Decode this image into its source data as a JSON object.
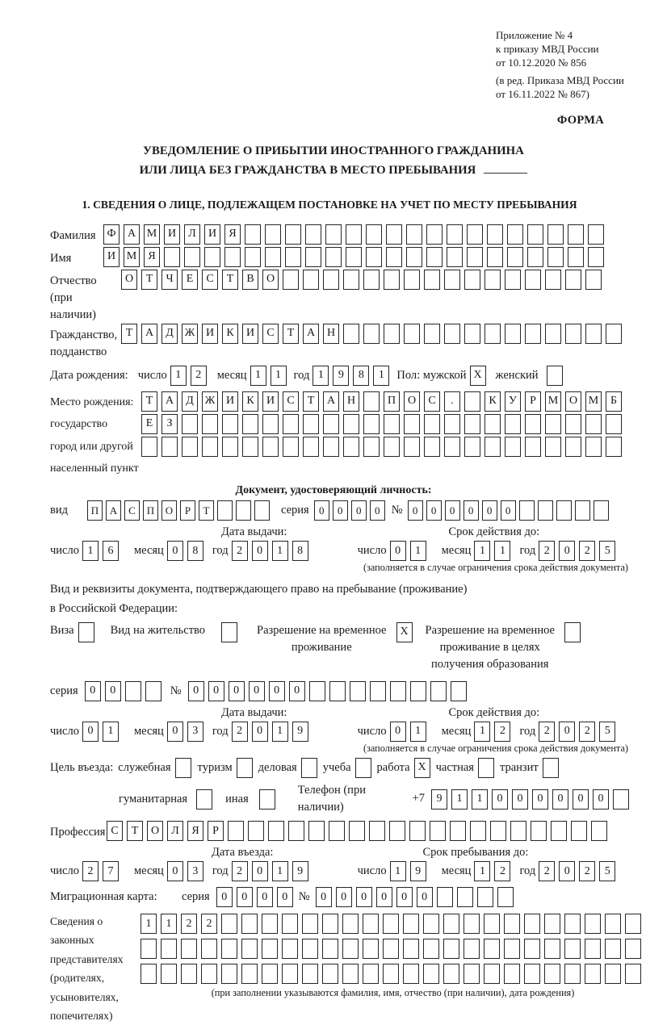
{
  "header": {
    "ref_lines": [
      "Приложение № 4",
      "к приказу МВД России",
      "от 10.12.2020 № 856",
      "(в ред. Приказа МВД России",
      "от 16.11.2022 № 867)"
    ],
    "form_label": "ФОРМА"
  },
  "title": {
    "line1": "УВЕДОМЛЕНИЕ О ПРИБЫТИИ ИНОСТРАННОГО ГРАЖДАНИНА",
    "line2": "ИЛИ ЛИЦА БЕЗ ГРАЖДАНСТВА В МЕСТО ПРЕБЫВАНИЯ"
  },
  "section1": {
    "heading": "1. СВЕДЕНИЯ О ЛИЦЕ, ПОДЛЕЖАЩЕМ ПОСТАНОВКЕ НА УЧЕТ ПО МЕСТУ ПРЕБЫВАНИЯ",
    "surname": {
      "label": "Фамилия",
      "boxes": {
        "chars": "ФАМИЛИЯ",
        "total": 25
      }
    },
    "given_name": {
      "label": "Имя",
      "boxes": {
        "chars": "ИМЯ",
        "total": 25
      }
    },
    "patronymic": {
      "label1": "Отчество",
      "label2": "(при наличии)",
      "boxes": {
        "chars": "ОТЧЕСТВО",
        "total": 24
      }
    },
    "citizenship": {
      "label1": "Гражданство,",
      "label2": "подданство",
      "boxes": {
        "chars": "ТАДЖИКИСТАН",
        "total": 25
      }
    },
    "birth_date": {
      "label": "Дата рождения:",
      "day_label": "число",
      "day": {
        "chars": "12",
        "total": 2
      },
      "month_label": "месяц",
      "month": {
        "chars": "11",
        "total": 2
      },
      "year_label": "год",
      "year": {
        "chars": "1981",
        "total": 4
      }
    },
    "sex": {
      "label": "Пол: мужской",
      "male_box": {
        "chars": "X",
        "total": 1
      },
      "female_label": "женский",
      "female_box": {
        "chars": "",
        "total": 1
      }
    },
    "birth_place": {
      "label_lines": [
        "Место рождения:",
        "государство",
        "город или другой",
        "населенный пункт"
      ],
      "row1": {
        "chars": "ТАДЖИКИСТАН ПОС. КУРМОМБ",
        "total": 24
      },
      "row2": {
        "chars": "ЕЗ",
        "total": 24
      },
      "row3": {
        "chars": "",
        "total": 24
      }
    },
    "identity_doc": {
      "heading": "Документ, удостоверяющий личность:",
      "kind_label": "вид",
      "kind": {
        "chars": "ПАСПОРТ",
        "total": 10
      },
      "series_label": "серия",
      "series": {
        "chars": "0000",
        "total": 4
      },
      "number_label": "№",
      "number": {
        "chars": "000000",
        "total": 11
      },
      "issue_heading": "Дата выдачи:",
      "issue_day_label": "число",
      "issue_day": {
        "chars": "16",
        "total": 2
      },
      "issue_month_label": "месяц",
      "issue_month": {
        "chars": "08",
        "total": 2
      },
      "issue_year_label": "год",
      "issue_year": {
        "chars": "2018",
        "total": 4
      },
      "valid_heading": "Срок действия до:",
      "valid_day_label": "число",
      "valid_day": {
        "chars": "01",
        "total": 2
      },
      "valid_month_label": "месяц",
      "valid_month": {
        "chars": "11",
        "total": 2
      },
      "valid_year_label": "год",
      "valid_year": {
        "chars": "2025",
        "total": 4
      },
      "note": "(заполняется в случае ограничения срока действия документа)"
    },
    "residence_doc": {
      "intro1": "Вид и реквизиты документа, подтверждающего право на пребывание (проживание)",
      "intro2": "в Российской Федерации:",
      "visa_label": "Виза",
      "visa_box": {
        "chars": "",
        "total": 1
      },
      "residence_permit_label": "Вид на жительство",
      "residence_permit_box": {
        "chars": "",
        "total": 1
      },
      "temp_permit_label1": "Разрешение на временное",
      "temp_permit_label2": "проживание",
      "temp_permit_box": {
        "chars": "X",
        "total": 1
      },
      "edu_permit_label1": "Разрешение на временное",
      "edu_permit_label2": "проживание в целях",
      "edu_permit_label3": "получения образования",
      "edu_permit_box": {
        "chars": "",
        "total": 1
      },
      "series_label": "серия",
      "series": {
        "chars": "00",
        "total": 4
      },
      "number_label": "№",
      "number": {
        "chars": "000000",
        "total": 14
      },
      "issue_heading": "Дата выдачи:",
      "issue_day_label": "число",
      "issue_day": {
        "chars": "01",
        "total": 2
      },
      "issue_month_label": "месяц",
      "issue_month": {
        "chars": "03",
        "total": 2
      },
      "issue_year_label": "год",
      "issue_year": {
        "chars": "2019",
        "total": 4
      },
      "valid_heading": "Срок действия до:",
      "valid_day_label": "число",
      "valid_day": {
        "chars": "01",
        "total": 2
      },
      "valid_month_label": "месяц",
      "valid_month": {
        "chars": "12",
        "total": 2
      },
      "valid_year_label": "год",
      "valid_year": {
        "chars": "2025",
        "total": 4
      },
      "note": "(заполняется в случае ограничения срока действия документа)"
    },
    "purpose": {
      "label": "Цель въезда:",
      "options": [
        {
          "label": "служебная",
          "box": {
            "chars": "",
            "total": 1
          }
        },
        {
          "label": "туризм",
          "box": {
            "chars": "",
            "total": 1
          }
        },
        {
          "label": "деловая",
          "box": {
            "chars": "",
            "total": 1
          }
        },
        {
          "label": "учеба",
          "box": {
            "chars": "",
            "total": 1
          }
        },
        {
          "label": "работа",
          "box": {
            "chars": "X",
            "total": 1
          }
        },
        {
          "label": "частная",
          "box": {
            "chars": "",
            "total": 1
          }
        },
        {
          "label": "транзит",
          "box": {
            "chars": "",
            "total": 1
          }
        },
        {
          "label": "гуманитарная",
          "box": {
            "chars": "",
            "total": 1
          }
        },
        {
          "label": "иная",
          "box": {
            "chars": "",
            "total": 1
          }
        }
      ],
      "phone_label": "Телефон (при наличии)",
      "phone_prefix": "+7",
      "phone": {
        "chars": "911000000",
        "total": 10
      }
    },
    "profession": {
      "label": "Профессия",
      "boxes": {
        "chars": "СТОЛЯР",
        "total": 25
      }
    },
    "entry": {
      "date_heading": "Дата въезда:",
      "day_label": "число",
      "day": {
        "chars": "27",
        "total": 2
      },
      "month_label": "месяц",
      "month": {
        "chars": "03",
        "total": 2
      },
      "year_label": "год",
      "year": {
        "chars": "2019",
        "total": 4
      },
      "stay_heading": "Срок пребывания до:",
      "stay_day_label": "число",
      "stay_day": {
        "chars": "19",
        "total": 2
      },
      "stay_month_label": "месяц",
      "stay_month": {
        "chars": "12",
        "total": 2
      },
      "stay_year_label": "год",
      "stay_year": {
        "chars": "2025",
        "total": 4
      }
    },
    "migration_card": {
      "label": "Миграционная карта:",
      "series_label": "серия",
      "series": {
        "chars": "0000",
        "total": 4
      },
      "number_label": "№",
      "number": {
        "chars": "000000",
        "total": 10
      }
    },
    "representatives": {
      "label_lines": [
        "Сведения о",
        "законных",
        "представителях",
        "(родителях,",
        "усыновителях,",
        "попечителях)"
      ],
      "row1": {
        "chars": "1122",
        "total": 25
      },
      "row2": {
        "chars": "",
        "total": 25
      },
      "row3": {
        "chars": "",
        "total": 25
      },
      "note": "(при заполнении указываются фамилия, имя, отчество (при наличии), дата рождения)"
    }
  }
}
